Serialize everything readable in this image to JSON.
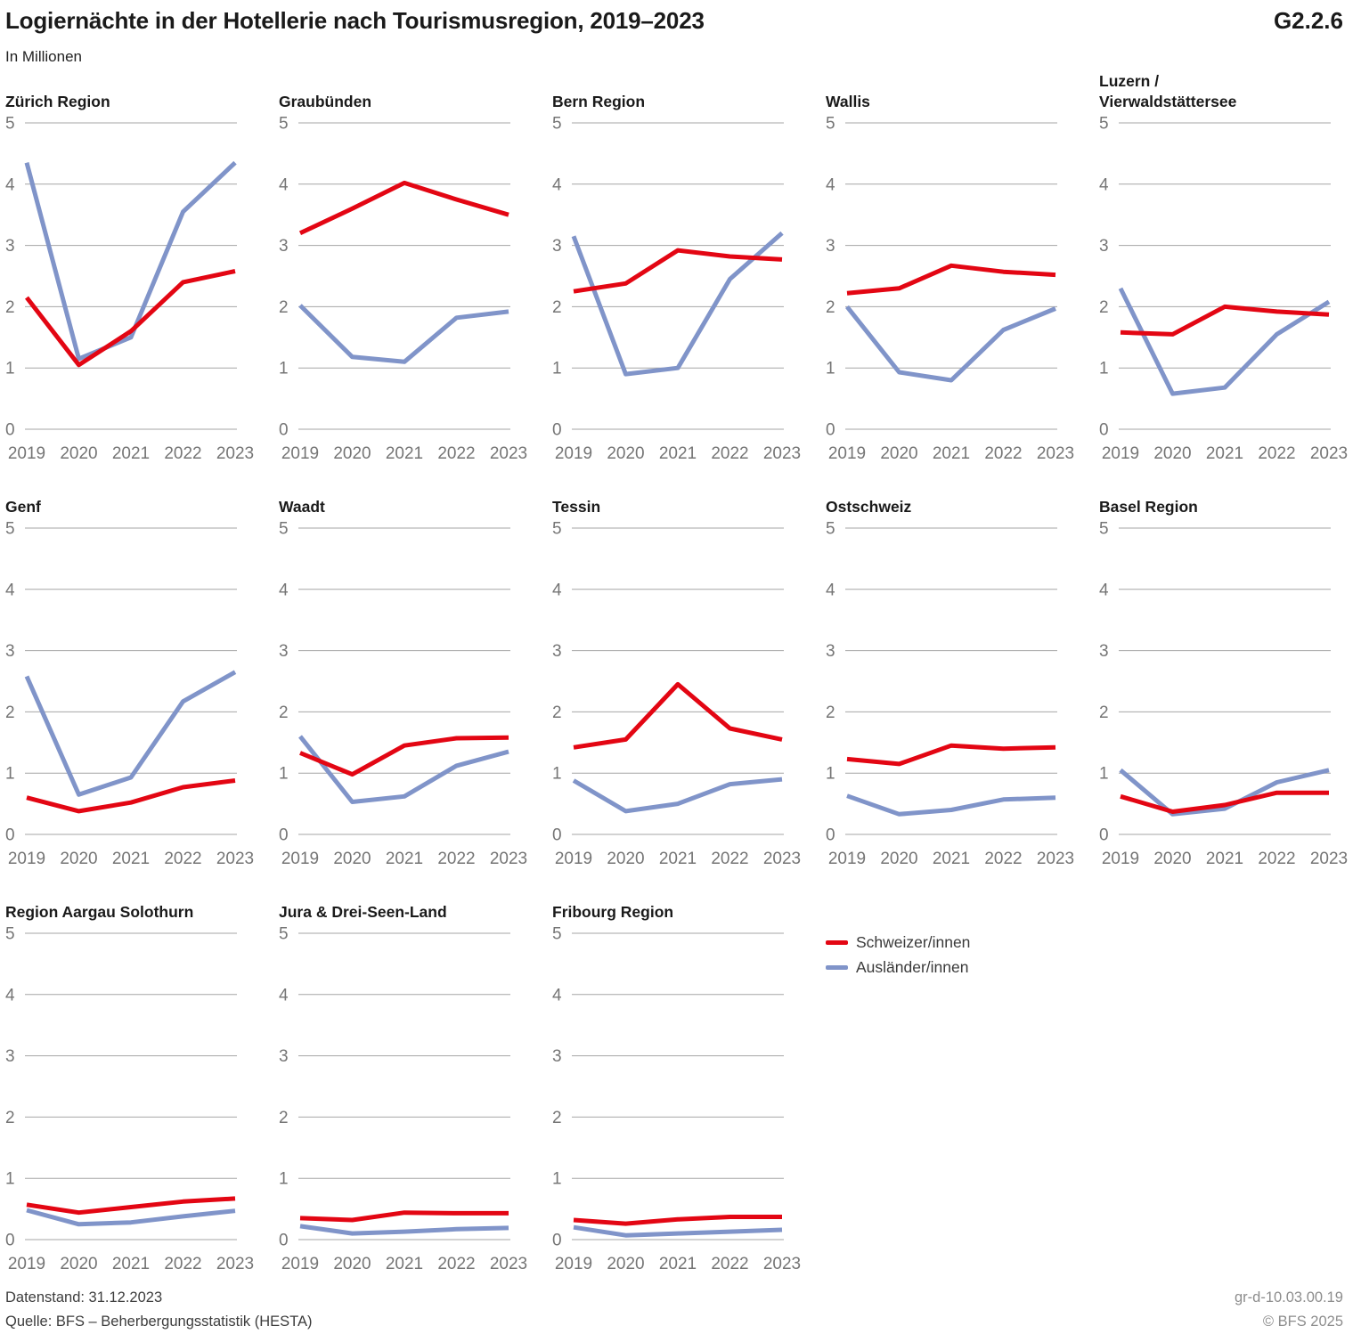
{
  "header": {
    "title": "Logiernächte in der Hotellerie nach Tourismusregion, 2019–2023",
    "figure_number": "G2.2.6",
    "unit_label": "In Millionen"
  },
  "chart_data": {
    "type": "line",
    "x": [
      2019,
      2020,
      2021,
      2022,
      2023
    ],
    "ylim": [
      0,
      5
    ],
    "yticks": [
      0,
      1,
      2,
      3,
      4,
      5
    ],
    "grid": true,
    "legend_position": "bottom-right-cell",
    "legend": [
      {
        "name": "Schweizer/innen",
        "color": "#e30613"
      },
      {
        "name": "Ausländer/innen",
        "color": "#8094c9"
      }
    ],
    "panels": [
      {
        "title": "Zürich Region",
        "series": [
          {
            "name": "Schweizer/innen",
            "values": [
              2.15,
              1.05,
              1.6,
              2.4,
              2.58
            ]
          },
          {
            "name": "Ausländer/innen",
            "values": [
              4.35,
              1.15,
              1.5,
              3.55,
              4.35
            ]
          }
        ]
      },
      {
        "title": "Graubünden",
        "series": [
          {
            "name": "Schweizer/innen",
            "values": [
              3.2,
              3.6,
              4.02,
              3.75,
              3.5
            ]
          },
          {
            "name": "Ausländer/innen",
            "values": [
              2.02,
              1.18,
              1.1,
              1.82,
              1.92
            ]
          }
        ]
      },
      {
        "title": "Bern Region",
        "series": [
          {
            "name": "Schweizer/innen",
            "values": [
              2.25,
              2.38,
              2.92,
              2.82,
              2.77
            ]
          },
          {
            "name": "Ausländer/innen",
            "values": [
              3.15,
              0.9,
              1.0,
              2.45,
              3.2
            ]
          }
        ]
      },
      {
        "title": "Wallis",
        "series": [
          {
            "name": "Schweizer/innen",
            "values": [
              2.22,
              2.3,
              2.67,
              2.57,
              2.52
            ]
          },
          {
            "name": "Ausländer/innen",
            "values": [
              2.0,
              0.93,
              0.8,
              1.62,
              1.97
            ]
          }
        ]
      },
      {
        "title": "Luzern /\nVierwaldstättersee",
        "series": [
          {
            "name": "Schweizer/innen",
            "values": [
              1.58,
              1.55,
              2.0,
              1.92,
              1.87
            ]
          },
          {
            "name": "Ausländer/innen",
            "values": [
              2.3,
              0.58,
              0.68,
              1.55,
              2.08
            ]
          }
        ]
      },
      {
        "title": "Genf",
        "series": [
          {
            "name": "Schweizer/innen",
            "values": [
              0.6,
              0.38,
              0.52,
              0.77,
              0.88
            ]
          },
          {
            "name": "Ausländer/innen",
            "values": [
              2.58,
              0.65,
              0.93,
              2.17,
              2.65
            ]
          }
        ]
      },
      {
        "title": "Waadt",
        "series": [
          {
            "name": "Schweizer/innen",
            "values": [
              1.33,
              0.98,
              1.45,
              1.57,
              1.58
            ]
          },
          {
            "name": "Ausländer/innen",
            "values": [
              1.6,
              0.53,
              0.62,
              1.12,
              1.35
            ]
          }
        ]
      },
      {
        "title": "Tessin",
        "series": [
          {
            "name": "Schweizer/innen",
            "values": [
              1.42,
              1.55,
              2.45,
              1.73,
              1.55
            ]
          },
          {
            "name": "Ausländer/innen",
            "values": [
              0.88,
              0.38,
              0.5,
              0.82,
              0.9
            ]
          }
        ]
      },
      {
        "title": "Ostschweiz",
        "series": [
          {
            "name": "Schweizer/innen",
            "values": [
              1.23,
              1.15,
              1.45,
              1.4,
              1.42
            ]
          },
          {
            "name": "Ausländer/innen",
            "values": [
              0.63,
              0.33,
              0.4,
              0.57,
              0.6
            ]
          }
        ]
      },
      {
        "title": "Basel Region",
        "series": [
          {
            "name": "Schweizer/innen",
            "values": [
              0.62,
              0.37,
              0.48,
              0.68,
              0.68
            ]
          },
          {
            "name": "Ausländer/innen",
            "values": [
              1.05,
              0.33,
              0.42,
              0.85,
              1.05
            ]
          }
        ]
      },
      {
        "title": "Region Aargau Solothurn",
        "series": [
          {
            "name": "Schweizer/innen",
            "values": [
              0.57,
              0.44,
              0.53,
              0.62,
              0.67
            ]
          },
          {
            "name": "Ausländer/innen",
            "values": [
              0.48,
              0.25,
              0.28,
              0.38,
              0.47
            ]
          }
        ]
      },
      {
        "title": "Jura & Drei-Seen-Land",
        "series": [
          {
            "name": "Schweizer/innen",
            "values": [
              0.35,
              0.32,
              0.44,
              0.43,
              0.43
            ]
          },
          {
            "name": "Ausländer/innen",
            "values": [
              0.22,
              0.1,
              0.13,
              0.17,
              0.19
            ]
          }
        ]
      },
      {
        "title": "Fribourg Region",
        "series": [
          {
            "name": "Schweizer/innen",
            "values": [
              0.32,
              0.26,
              0.33,
              0.37,
              0.37
            ]
          },
          {
            "name": "Ausländer/innen",
            "values": [
              0.2,
              0.07,
              0.1,
              0.13,
              0.16
            ]
          }
        ]
      }
    ],
    "colors": {
      "gridline": "#a6a6a6",
      "tick_label": "#757575"
    }
  },
  "footer": {
    "datenstand": "Datenstand: 31.12.2023",
    "quelle": "Quelle: BFS – Beherbergungsstatistik (HESTA)",
    "code": "gr-d-10.03.00.19",
    "copyright": "© BFS 2025"
  }
}
